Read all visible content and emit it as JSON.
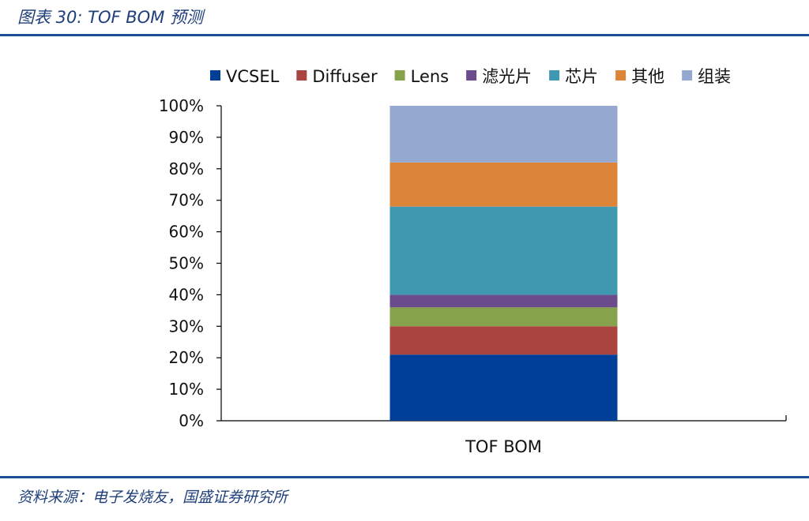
{
  "header": {
    "title": "图表 30:  TOF BOM 预测"
  },
  "footer": {
    "source": "资料来源：电子发烧友，国盛证券研究所"
  },
  "colors": {
    "rule": "#1c4e9a",
    "header_text": "#1f3f7a",
    "axis": "#000000"
  },
  "chart_data": {
    "type": "bar",
    "stacked": true,
    "title": "",
    "xlabel": "",
    "ylabel": "",
    "categories": [
      "TOF BOM"
    ],
    "ylim": [
      0,
      100
    ],
    "y_ticks": [
      "0%",
      "10%",
      "20%",
      "30%",
      "40%",
      "50%",
      "60%",
      "70%",
      "80%",
      "90%",
      "100%"
    ],
    "y_tick_values": [
      0,
      10,
      20,
      30,
      40,
      50,
      60,
      70,
      80,
      90,
      100
    ],
    "legend_position": "top",
    "grid": false,
    "series": [
      {
        "name": "VCSEL",
        "color": "#003f98",
        "values": [
          21
        ]
      },
      {
        "name": "Diffuser",
        "color": "#a9443f",
        "values": [
          9
        ]
      },
      {
        "name": "Lens",
        "color": "#86a24a",
        "values": [
          6
        ]
      },
      {
        "name": "滤光片",
        "color": "#6a4b8b",
        "values": [
          4
        ]
      },
      {
        "name": "芯片",
        "color": "#3f98b0",
        "values": [
          28
        ]
      },
      {
        "name": "其他",
        "color": "#dc8538",
        "values": [
          14
        ]
      },
      {
        "name": "组装",
        "color": "#95a9d0",
        "values": [
          18
        ]
      }
    ]
  }
}
